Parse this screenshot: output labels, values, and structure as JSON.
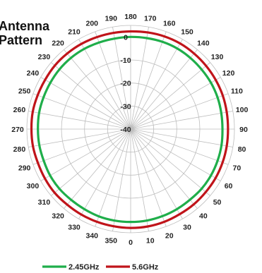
{
  "title_lines": [
    "Antenna",
    "Pattern"
  ],
  "chart_data": {
    "type": "polar",
    "title": "Antenna Pattern",
    "angle_labels": [
      "0",
      "10",
      "20",
      "30",
      "40",
      "50",
      "60",
      "70",
      "80",
      "90",
      "100",
      "110",
      "120",
      "130",
      "140",
      "150",
      "160",
      "170",
      "180",
      "190",
      "200",
      "210",
      "220",
      "230",
      "240",
      "250",
      "260",
      "270",
      "280",
      "290",
      "300",
      "310",
      "320",
      "330",
      "340",
      "350"
    ],
    "angle_values_deg": [
      0,
      10,
      20,
      30,
      40,
      50,
      60,
      70,
      80,
      90,
      100,
      110,
      120,
      130,
      140,
      150,
      160,
      170,
      180,
      190,
      200,
      210,
      220,
      230,
      240,
      250,
      260,
      270,
      280,
      290,
      300,
      310,
      320,
      330,
      340,
      350
    ],
    "radial_ticks": [
      0,
      -10,
      -20,
      -30,
      -40
    ],
    "radial_tick_labels": [
      "0",
      "-10",
      "-20",
      "-30",
      "-40"
    ],
    "rlim": [
      -40,
      5
    ],
    "grid": true,
    "legend_position": "bottom",
    "series": [
      {
        "name": "2.45GHz",
        "color": "#1fae4a",
        "theta_deg": [
          0,
          10,
          20,
          30,
          40,
          50,
          60,
          70,
          80,
          90,
          100,
          110,
          120,
          130,
          140,
          150,
          160,
          170,
          180,
          190,
          200,
          210,
          220,
          230,
          240,
          250,
          260,
          270,
          280,
          290,
          300,
          310,
          320,
          330,
          340,
          350
        ],
        "r_db": [
          0.3,
          0.3,
          0.2,
          0.1,
          0.0,
          0.2,
          0.2,
          0.1,
          0.0,
          -0.2,
          -0.1,
          0.1,
          0.2,
          0.2,
          0.3,
          0.4,
          0.3,
          0.1,
          0.0,
          -0.1,
          0.0,
          0.2,
          0.3,
          0.3,
          0.2,
          0.2,
          0.3,
          0.2,
          0.2,
          0.1,
          0.3,
          0.3,
          0.1,
          0.1,
          0.3,
          0.3
        ]
      },
      {
        "name": "5.6GHz",
        "color": "#c0141a",
        "theta_deg": [
          0,
          10,
          20,
          30,
          40,
          50,
          60,
          70,
          80,
          90,
          100,
          110,
          120,
          130,
          140,
          150,
          160,
          170,
          180,
          190,
          200,
          210,
          220,
          230,
          240,
          250,
          260,
          270,
          280,
          290,
          300,
          310,
          320,
          330,
          340,
          350
        ],
        "r_db": [
          2.9,
          2.9,
          2.8,
          2.6,
          2.6,
          2.5,
          2.5,
          2.4,
          2.3,
          2.2,
          2.3,
          2.5,
          2.6,
          2.7,
          2.8,
          2.9,
          2.8,
          2.6,
          2.4,
          2.4,
          2.5,
          2.7,
          2.8,
          2.9,
          2.8,
          2.9,
          3.1,
          3.0,
          3.0,
          2.8,
          2.9,
          3.0,
          2.8,
          2.8,
          2.8,
          2.8
        ]
      }
    ],
    "legend": [
      {
        "label": "2.45GHz",
        "color": "#1fae4a"
      },
      {
        "label": "5.6GHz",
        "color": "#c0141a"
      }
    ]
  }
}
